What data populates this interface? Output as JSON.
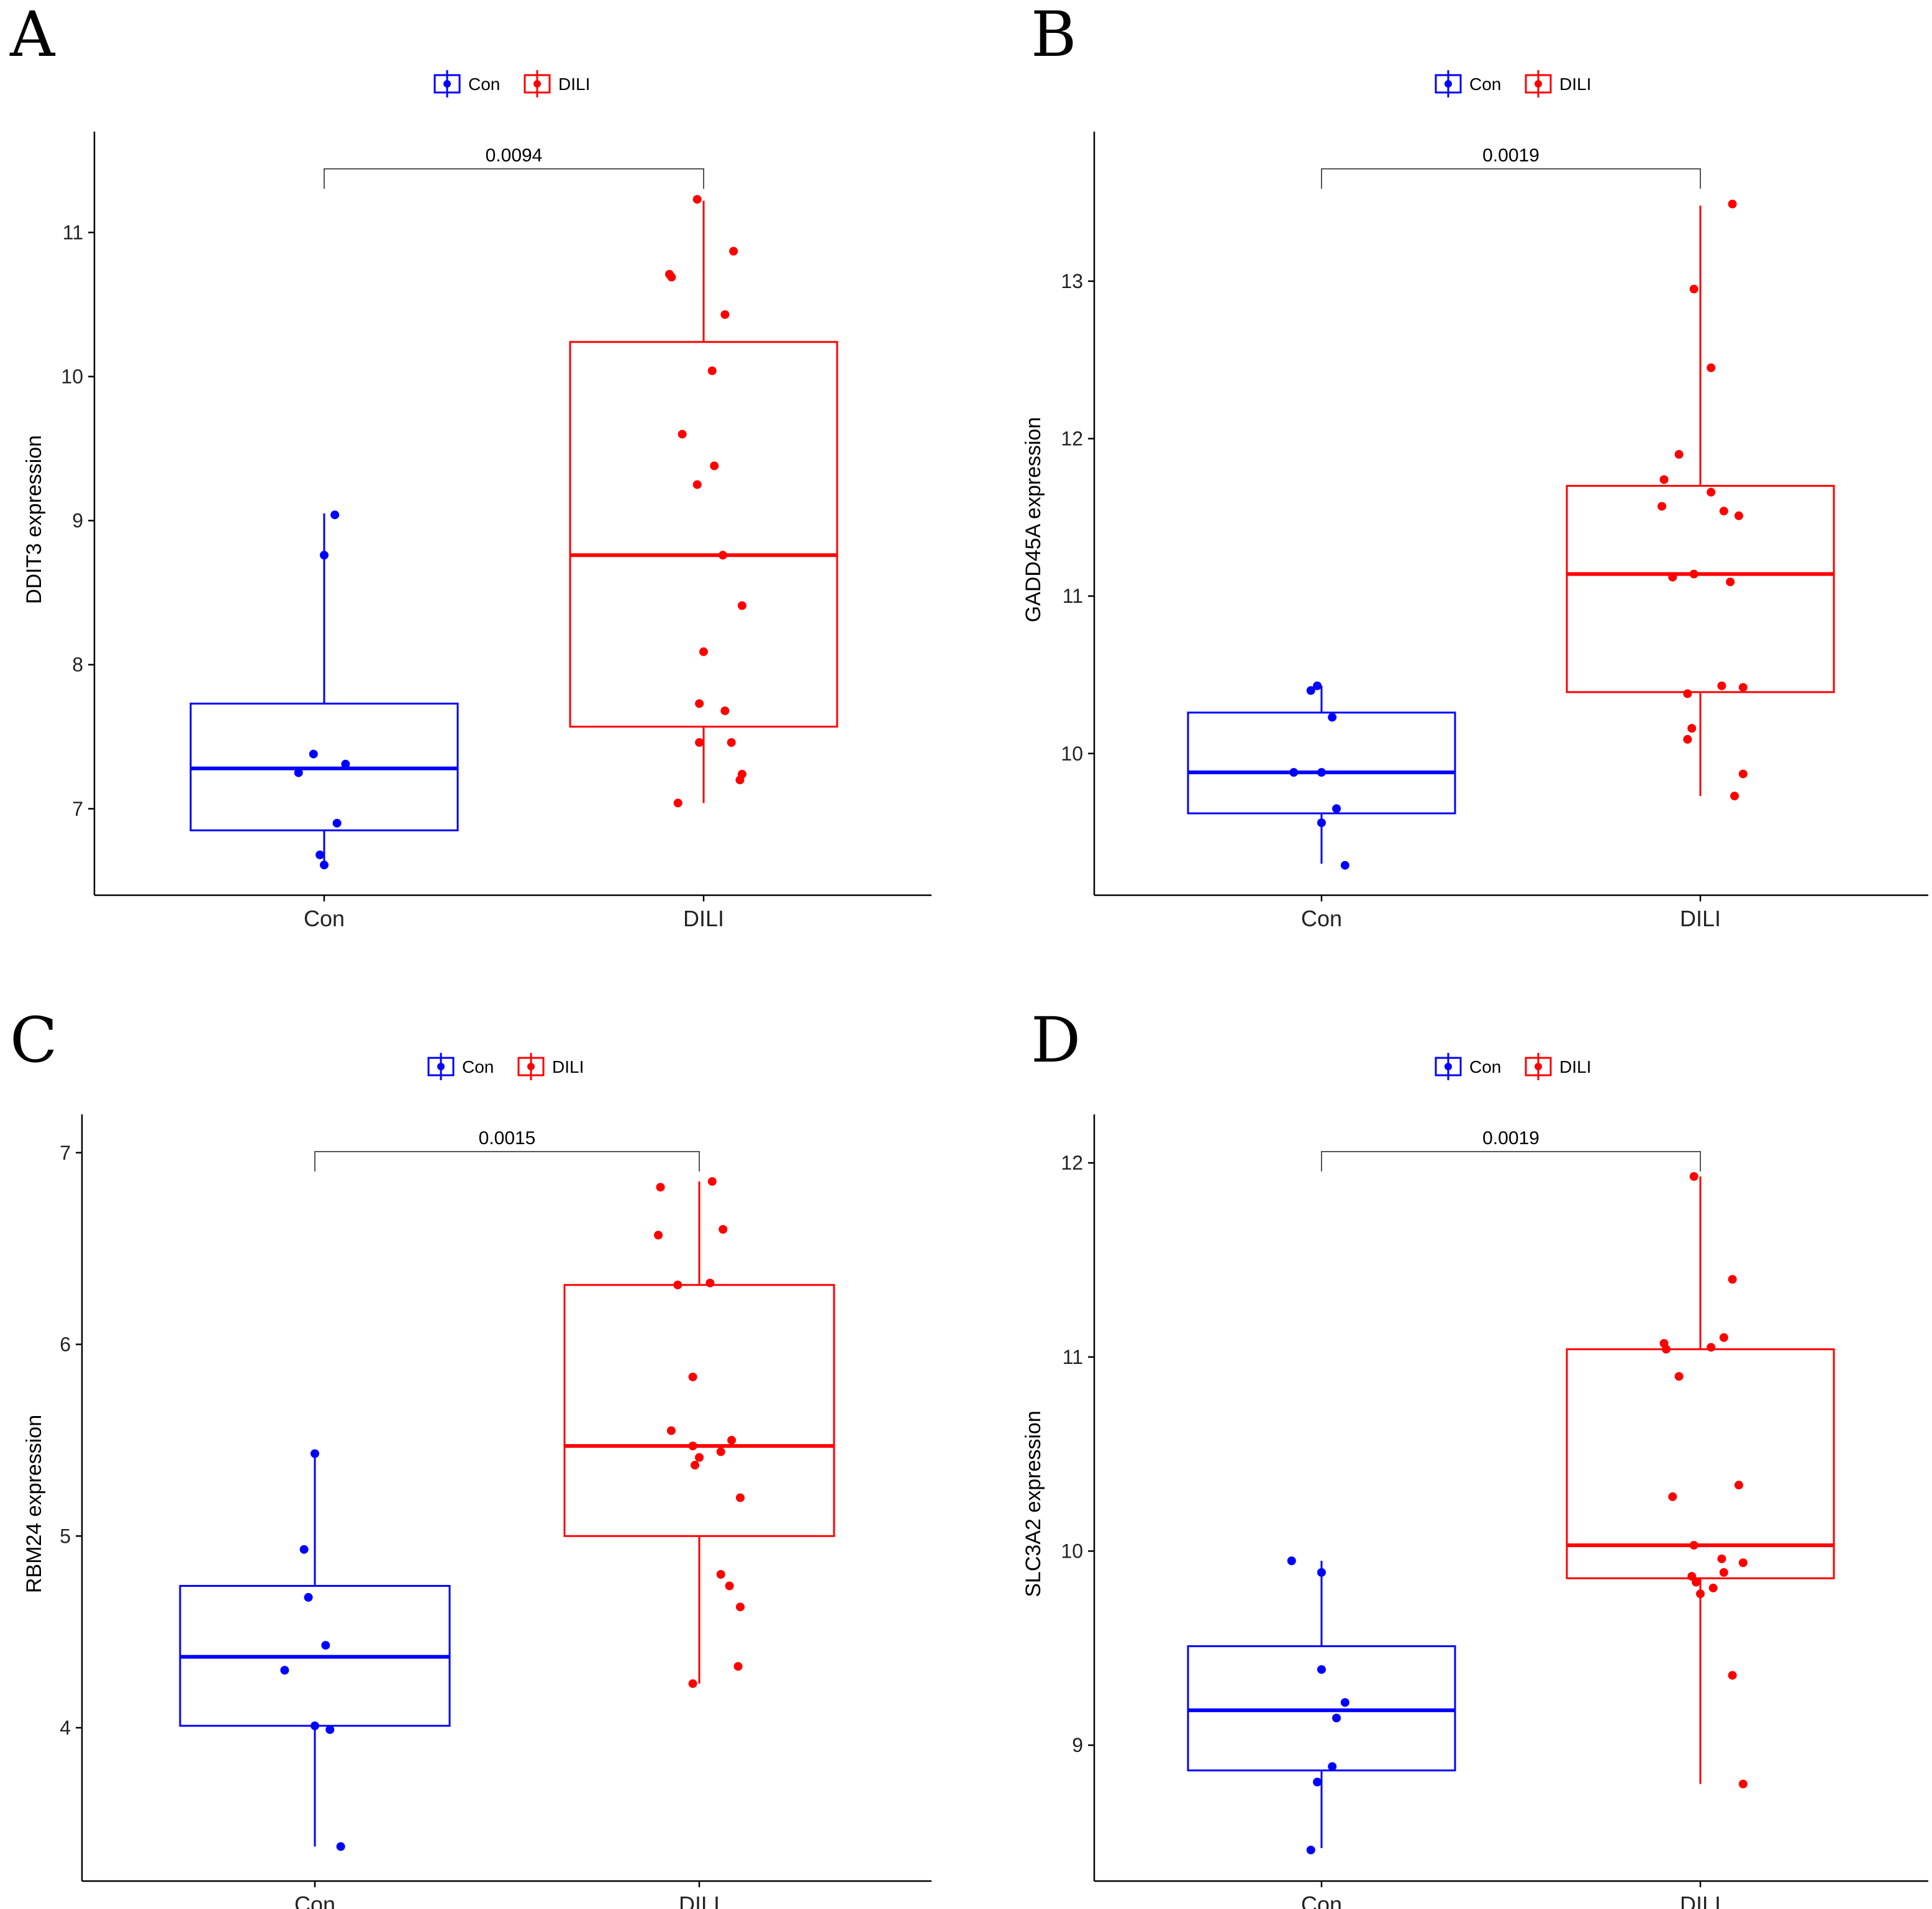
{
  "colors": {
    "con": "#0000ff",
    "dili": "#ff0000",
    "axis": "#000000",
    "bracket": "#555555"
  },
  "legend": {
    "con_label": "Con",
    "dili_label": "DILI"
  },
  "chart_data": [
    {
      "panel": "A",
      "type": "box",
      "ylabel": "DDIT3 expression",
      "categories": [
        "Con",
        "DILI"
      ],
      "ylim": [
        6.4,
        11.7
      ],
      "yticks": [
        7,
        8,
        9,
        10,
        11
      ],
      "p_value": "0.0094",
      "series": [
        {
          "name": "Con",
          "box": {
            "q1": 6.85,
            "median": 7.28,
            "q3": 7.73,
            "whisker_low": 6.6,
            "whisker_high": 9.05
          },
          "points": [
            [
              0.05,
              9.04
            ],
            [
              0.0,
              8.76
            ],
            [
              -0.05,
              7.38
            ],
            [
              0.1,
              7.31
            ],
            [
              -0.12,
              7.25
            ],
            [
              0.06,
              6.9
            ],
            [
              -0.02,
              6.68
            ],
            [
              0.0,
              6.61
            ]
          ]
        },
        {
          "name": "DILI",
          "box": {
            "q1": 7.57,
            "median": 8.76,
            "q3": 10.24,
            "whisker_low": 7.04,
            "whisker_high": 11.22
          },
          "points": [
            [
              -0.03,
              11.23
            ],
            [
              0.14,
              10.87
            ],
            [
              -0.16,
              10.71
            ],
            [
              -0.15,
              10.69
            ],
            [
              0.1,
              10.43
            ],
            [
              0.04,
              10.04
            ],
            [
              -0.1,
              9.6
            ],
            [
              0.05,
              9.38
            ],
            [
              -0.03,
              9.25
            ],
            [
              0.09,
              8.76
            ],
            [
              0.18,
              8.41
            ],
            [
              0.0,
              8.09
            ],
            [
              -0.02,
              7.73
            ],
            [
              0.1,
              7.68
            ],
            [
              -0.02,
              7.46
            ],
            [
              0.13,
              7.46
            ],
            [
              0.18,
              7.24
            ],
            [
              0.17,
              7.2
            ],
            [
              -0.12,
              7.04
            ]
          ]
        }
      ]
    },
    {
      "panel": "B",
      "type": "box",
      "ylabel": "GADD45A expression",
      "categories": [
        "Con",
        "DILI"
      ],
      "ylim": [
        9.1,
        13.95
      ],
      "yticks": [
        10,
        11,
        12,
        13
      ],
      "p_value": "0.0019",
      "series": [
        {
          "name": "Con",
          "box": {
            "q1": 9.62,
            "median": 9.88,
            "q3": 10.26,
            "whisker_low": 9.3,
            "whisker_high": 10.43
          },
          "points": [
            [
              -0.02,
              10.43
            ],
            [
              -0.05,
              10.4
            ],
            [
              0.05,
              10.23
            ],
            [
              -0.13,
              9.88
            ],
            [
              0.0,
              9.88
            ],
            [
              0.07,
              9.65
            ],
            [
              0.0,
              9.56
            ],
            [
              0.11,
              9.29
            ]
          ]
        },
        {
          "name": "DILI",
          "box": {
            "q1": 10.39,
            "median": 11.14,
            "q3": 11.7,
            "whisker_low": 9.73,
            "whisker_high": 13.48
          },
          "points": [
            [
              0.15,
              13.49
            ],
            [
              -0.03,
              12.95
            ],
            [
              0.05,
              12.45
            ],
            [
              -0.1,
              11.9
            ],
            [
              -0.17,
              11.74
            ],
            [
              0.05,
              11.66
            ],
            [
              -0.18,
              11.57
            ],
            [
              0.11,
              11.54
            ],
            [
              0.18,
              11.51
            ],
            [
              -0.03,
              11.14
            ],
            [
              -0.13,
              11.12
            ],
            [
              0.14,
              11.09
            ],
            [
              0.1,
              10.43
            ],
            [
              0.2,
              10.42
            ],
            [
              -0.06,
              10.38
            ],
            [
              -0.04,
              10.16
            ],
            [
              -0.06,
              10.09
            ],
            [
              0.2,
              9.87
            ],
            [
              0.16,
              9.73
            ]
          ]
        }
      ]
    },
    {
      "panel": "C",
      "type": "box",
      "ylabel": "RBM24 expression",
      "categories": [
        "Con",
        "DILI"
      ],
      "ylim": [
        3.2,
        7.2
      ],
      "yticks": [
        4,
        5,
        6,
        7
      ],
      "p_value": "0.0015",
      "series": [
        {
          "name": "Con",
          "box": {
            "q1": 4.01,
            "median": 4.37,
            "q3": 4.74,
            "whisker_low": 3.38,
            "whisker_high": 5.43
          },
          "points": [
            [
              0.0,
              5.43
            ],
            [
              -0.05,
              4.93
            ],
            [
              -0.03,
              4.68
            ],
            [
              0.05,
              4.43
            ],
            [
              -0.14,
              4.3
            ],
            [
              0.0,
              4.01
            ],
            [
              0.07,
              3.99
            ],
            [
              0.12,
              3.38
            ]
          ]
        },
        {
          "name": "DILI",
          "box": {
            "q1": 5.0,
            "median": 5.47,
            "q3": 6.31,
            "whisker_low": 4.23,
            "whisker_high": 6.85
          },
          "points": [
            [
              0.06,
              6.85
            ],
            [
              -0.18,
              6.82
            ],
            [
              0.11,
              6.6
            ],
            [
              -0.19,
              6.57
            ],
            [
              0.05,
              6.32
            ],
            [
              -0.1,
              6.31
            ],
            [
              -0.03,
              5.83
            ],
            [
              -0.13,
              5.55
            ],
            [
              0.15,
              5.5
            ],
            [
              -0.03,
              5.47
            ],
            [
              0.1,
              5.44
            ],
            [
              0.0,
              5.41
            ],
            [
              -0.02,
              5.37
            ],
            [
              0.19,
              5.2
            ],
            [
              0.1,
              4.8
            ],
            [
              0.14,
              4.74
            ],
            [
              0.19,
              4.63
            ],
            [
              0.18,
              4.32
            ],
            [
              -0.03,
              4.23
            ]
          ]
        }
      ]
    },
    {
      "panel": "D",
      "type": "box",
      "ylabel": "SLC3A2 expression",
      "categories": [
        "Con",
        "DILI"
      ],
      "ylim": [
        8.3,
        12.25
      ],
      "yticks": [
        9,
        10,
        11,
        12
      ],
      "p_value": "0.0019",
      "series": [
        {
          "name": "Con",
          "box": {
            "q1": 8.87,
            "median": 9.18,
            "q3": 9.51,
            "whisker_low": 8.47,
            "whisker_high": 9.95
          },
          "points": [
            [
              -0.14,
              9.95
            ],
            [
              0.0,
              9.89
            ],
            [
              0.0,
              9.39
            ],
            [
              0.11,
              9.22
            ],
            [
              0.07,
              9.14
            ],
            [
              0.05,
              8.89
            ],
            [
              -0.02,
              8.81
            ],
            [
              -0.05,
              8.46
            ]
          ]
        },
        {
          "name": "DILI",
          "box": {
            "q1": 9.86,
            "median": 10.03,
            "q3": 11.04,
            "whisker_low": 8.8,
            "whisker_high": 11.93
          },
          "points": [
            [
              -0.03,
              11.93
            ],
            [
              0.15,
              11.4
            ],
            [
              0.11,
              11.1
            ],
            [
              -0.17,
              11.07
            ],
            [
              -0.16,
              11.04
            ],
            [
              0.05,
              11.05
            ],
            [
              -0.1,
              10.9
            ],
            [
              0.18,
              10.34
            ],
            [
              -0.13,
              10.28
            ],
            [
              -0.03,
              10.03
            ],
            [
              0.1,
              9.96
            ],
            [
              0.2,
              9.94
            ],
            [
              0.11,
              9.89
            ],
            [
              -0.04,
              9.87
            ],
            [
              -0.02,
              9.84
            ],
            [
              0.06,
              9.81
            ],
            [
              0.0,
              9.78
            ],
            [
              0.15,
              9.36
            ],
            [
              0.2,
              8.8
            ]
          ]
        }
      ]
    }
  ]
}
